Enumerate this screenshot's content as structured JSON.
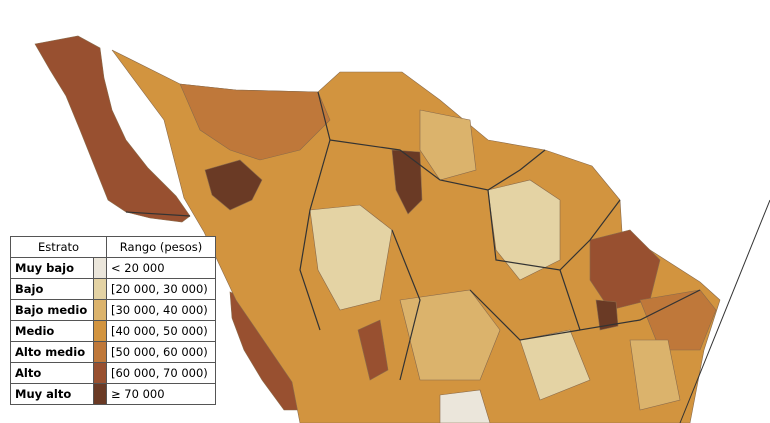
{
  "legend": {
    "header": [
      "Estrato",
      "Rango (pesos)"
    ],
    "rows": [
      {
        "label": "Muy bajo",
        "range": "< 20 000",
        "color": "#ebe6db"
      },
      {
        "label": "Bajo",
        "range": "[20 000, 30 000)",
        "color": "#e4d3a4"
      },
      {
        "label": "Bajo medio",
        "range": "[30 000, 40 000)",
        "color": "#dbb36c"
      },
      {
        "label": "Medio",
        "range": "[40 000, 50 000)",
        "color": "#d2943f"
      },
      {
        "label": "Alto medio",
        "range": "[50 000, 60 000)",
        "color": "#bf783a"
      },
      {
        "label": "Alto",
        "range": "[60 000, 70 000)",
        "color": "#985030"
      },
      {
        "label": "Muy alto",
        "range": "≥ 70 000",
        "color": "#6a3a25"
      }
    ]
  }
}
